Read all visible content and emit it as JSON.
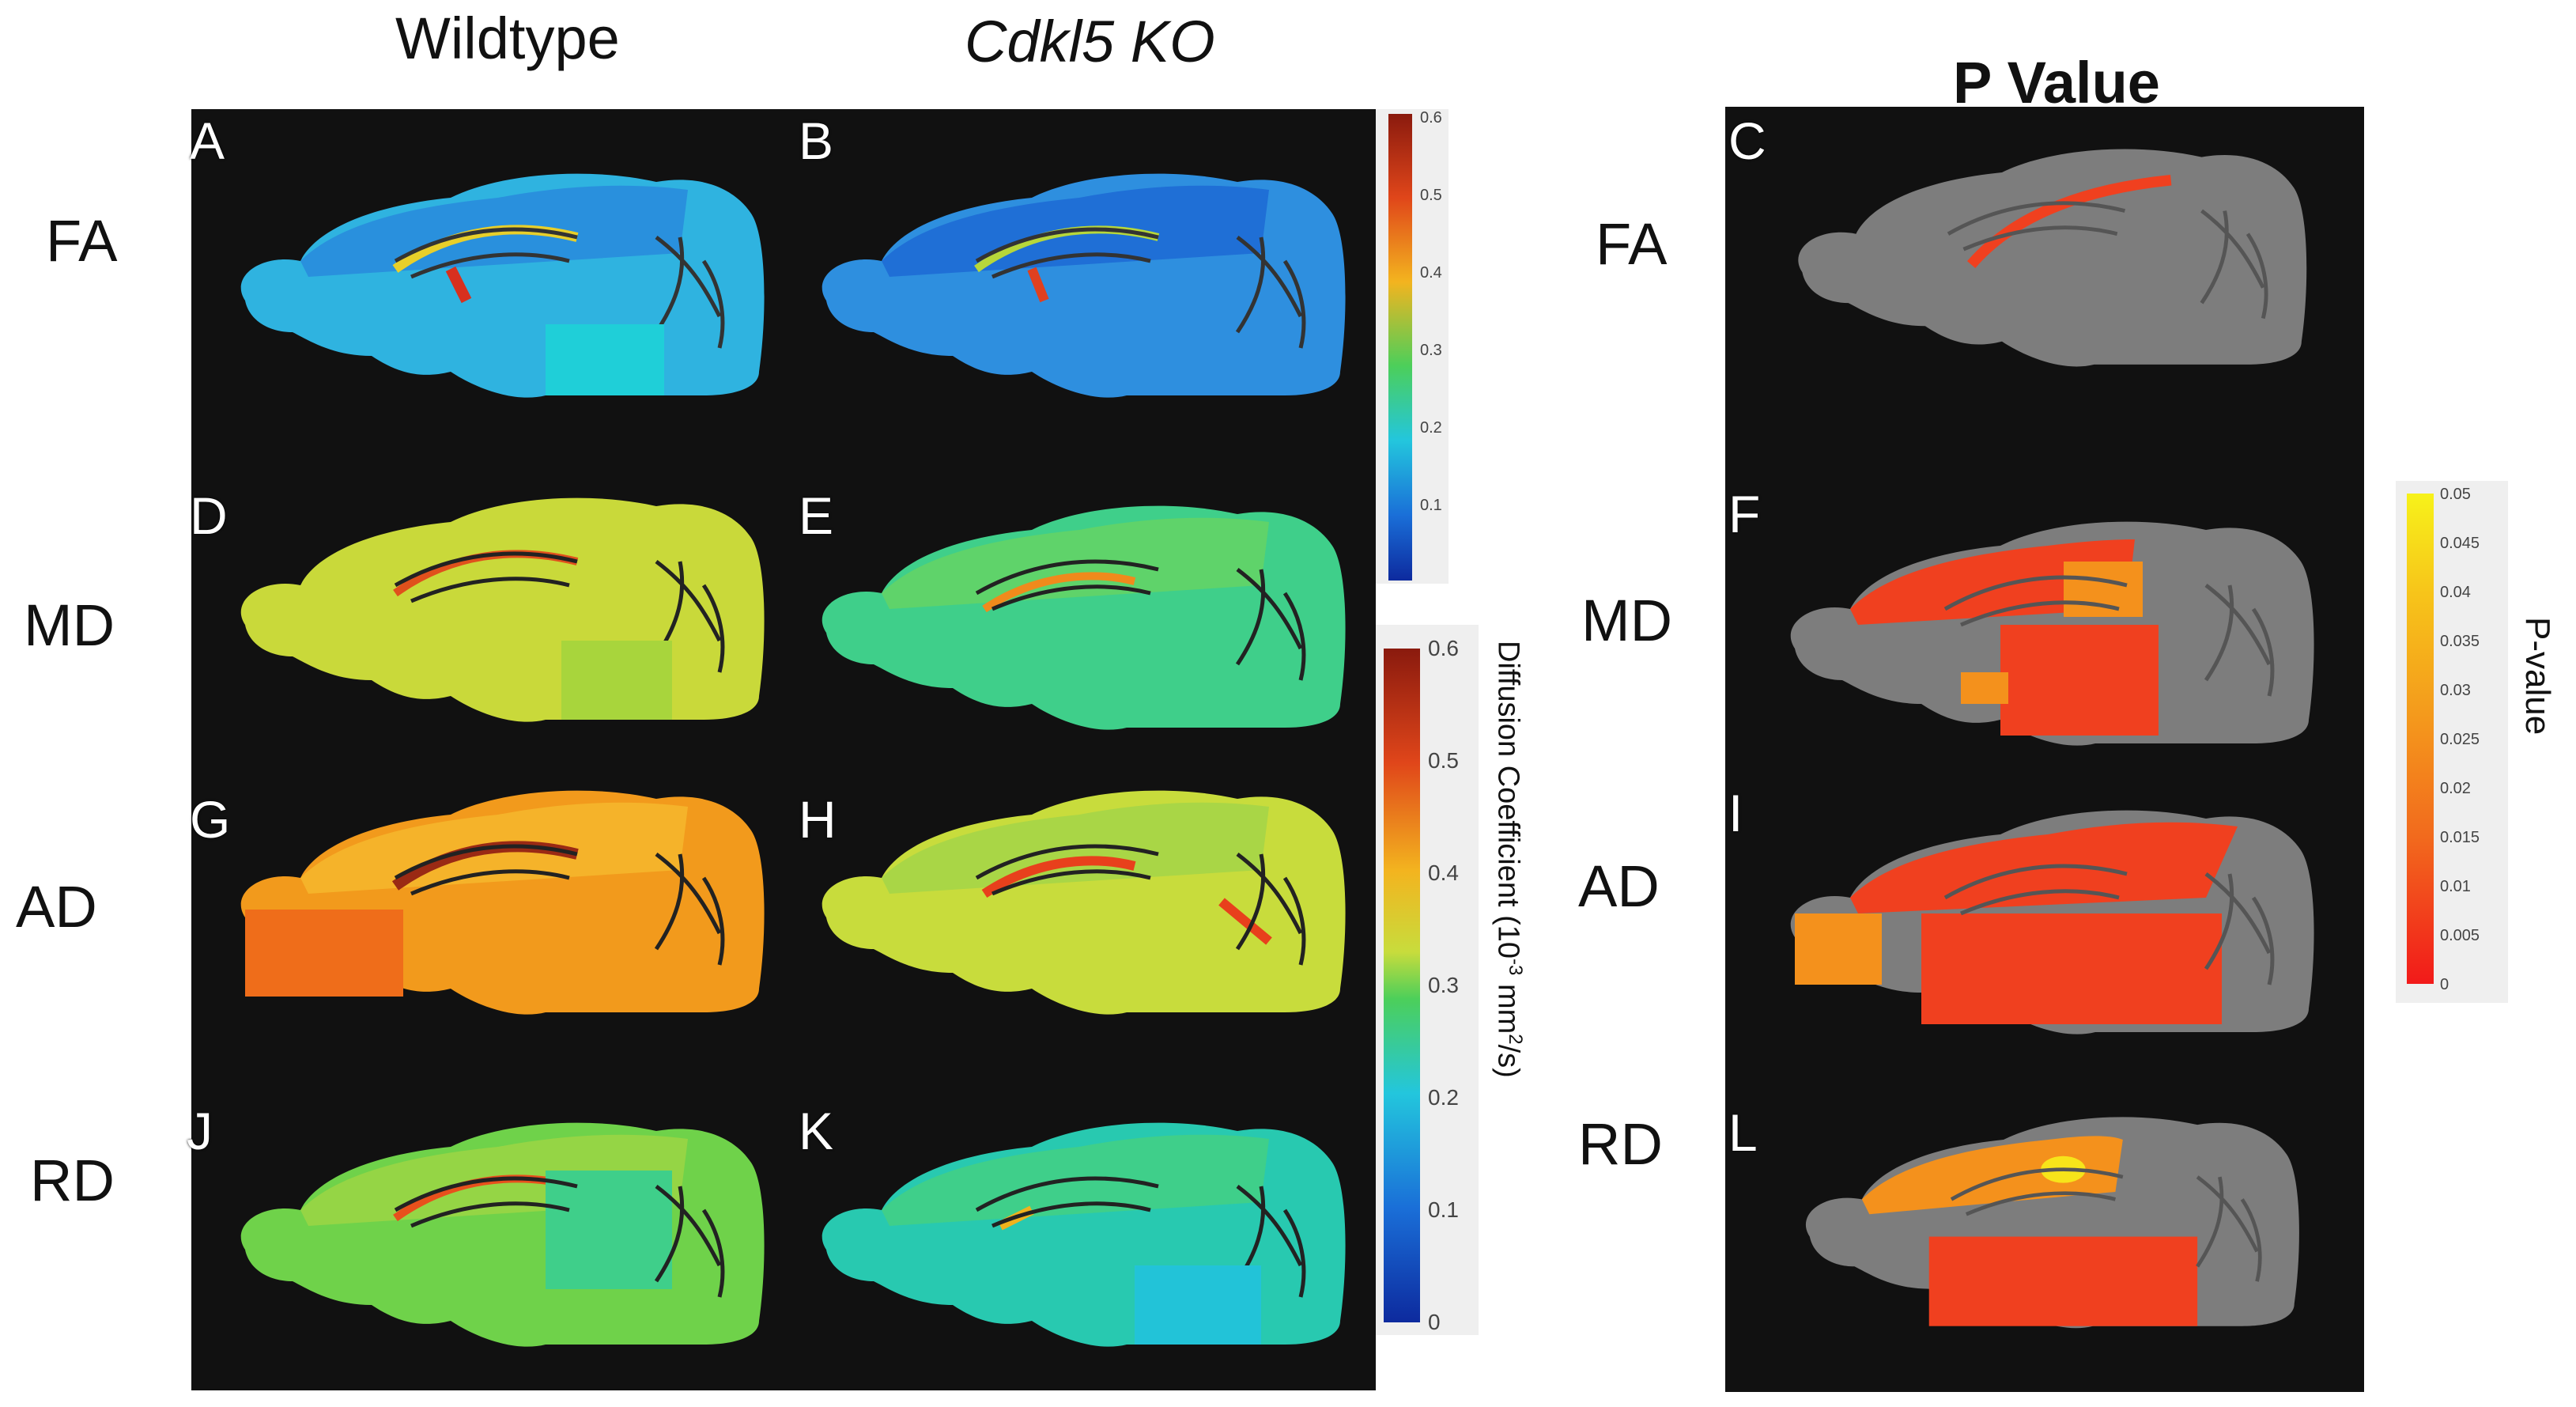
{
  "titles": {
    "wildtype": "Wildtype",
    "knockout": "Cdkl5 KO",
    "pvalue": "P Value"
  },
  "rows": [
    {
      "label": "FA",
      "pvalue_label": "FA"
    },
    {
      "label": "MD",
      "pvalue_label": "MD"
    },
    {
      "label": "AD",
      "pvalue_label": "AD"
    },
    {
      "label": "RD",
      "pvalue_label": "RD"
    }
  ],
  "panels": [
    "A",
    "B",
    "C",
    "D",
    "E",
    "F",
    "G",
    "H",
    "I",
    "J",
    "K",
    "L"
  ],
  "colorbars": {
    "fa_scale": {
      "ticks": [
        "0.6",
        "0.5",
        "0.4",
        "0.3",
        "0.2",
        "0.1",
        ""
      ]
    },
    "diffusion": {
      "title": "Diffusion Coefficient (10",
      "exp": "-3",
      "unit_mid": " mm",
      "exp2": "2",
      "unit_end": "/s)",
      "ticks": [
        "0.6",
        "0.5",
        "0.4",
        "0.3",
        "0.2",
        "0.1",
        "0"
      ]
    },
    "pvalue": {
      "title": "P-value",
      "ticks": [
        "0.05",
        "0.045",
        "0.04",
        "0.035",
        "0.03",
        "0.025",
        "0.02",
        "0.015",
        "0.01",
        "0.005",
        "0"
      ]
    }
  },
  "colors": {
    "fa_wt": "#2fb3e0",
    "fa_ko": "#2e8fdf",
    "md_wt": "#c9d93a",
    "md_ko": "#3fcf8a",
    "ad_wt": "#f29a1c",
    "ad_ko": "#c8dc3c",
    "rd_wt": "#6fd24a",
    "rd_ko": "#28c9b0",
    "p_red": "#f0401f",
    "p_orange": "#f4911c",
    "p_yellow": "#f7e41a",
    "brain_gray": "#7d7d7d"
  }
}
